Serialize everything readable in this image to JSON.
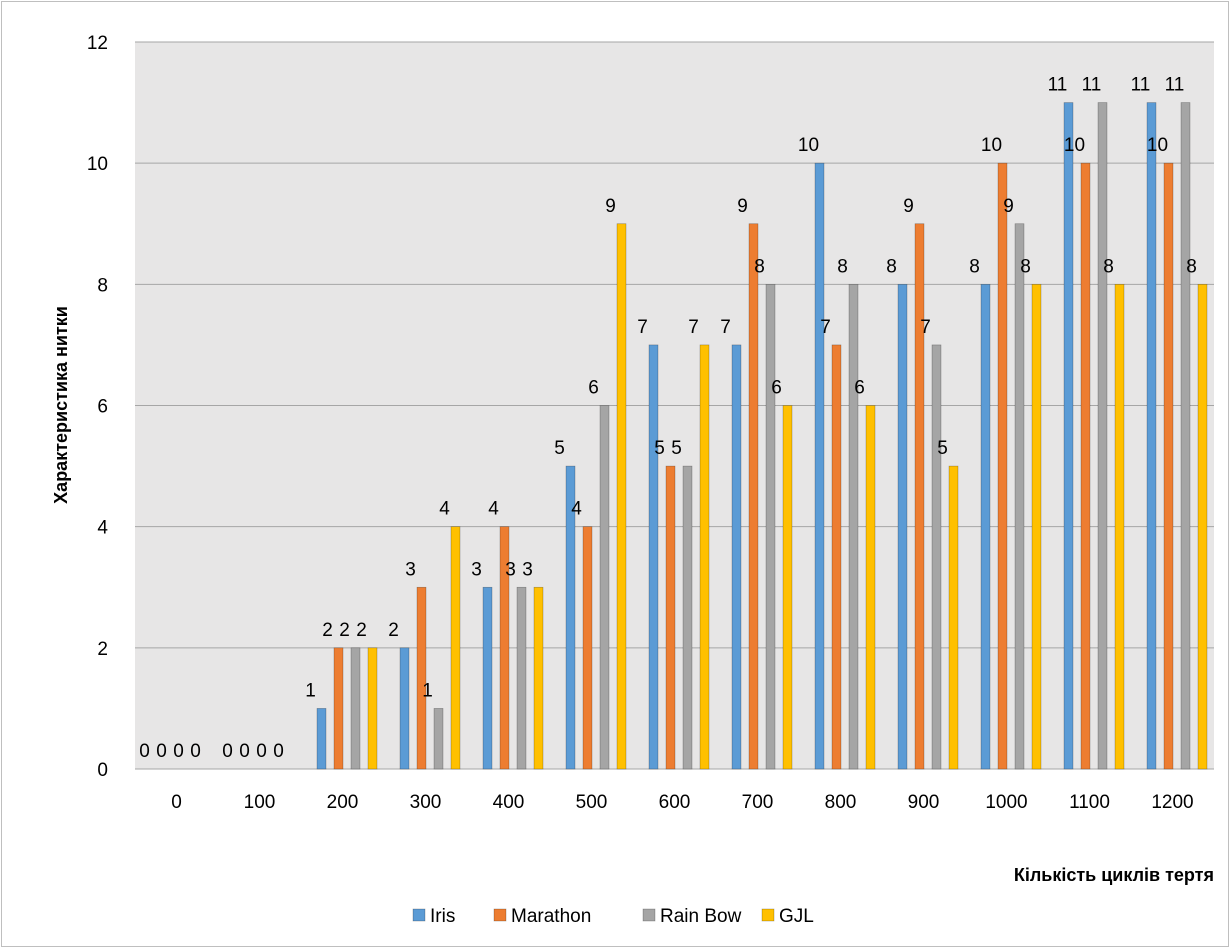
{
  "chart_data": {
    "type": "bar",
    "categories": [
      "0",
      "100",
      "200",
      "300",
      "400",
      "500",
      "600",
      "700",
      "800",
      "900",
      "1000",
      "1100",
      "1200"
    ],
    "series": [
      {
        "name": "Iris",
        "color": "#5B9BD5",
        "values": [
          0,
          0,
          1,
          2,
          3,
          5,
          7,
          7,
          10,
          8,
          8,
          11,
          11
        ]
      },
      {
        "name": "Marathon",
        "color": "#ED7D31",
        "values": [
          0,
          0,
          2,
          3,
          4,
          4,
          5,
          9,
          7,
          9,
          10,
          10,
          10
        ]
      },
      {
        "name": "Rain Bow",
        "color": "#A5A5A5",
        "values": [
          0,
          0,
          2,
          1,
          3,
          6,
          5,
          8,
          8,
          7,
          9,
          11,
          11
        ]
      },
      {
        "name": "GJL",
        "color": "#FFC000",
        "values": [
          0,
          0,
          2,
          4,
          3,
          9,
          7,
          6,
          6,
          5,
          8,
          8,
          8
        ]
      }
    ],
    "title": "",
    "xlabel": "Кількість циклів тертя",
    "ylabel": "Характеристика нитки",
    "ylim": [
      0,
      12
    ],
    "yticks": [
      0,
      2,
      4,
      6,
      8,
      10,
      12
    ],
    "grid": true,
    "plot_background": "#E7E6E6",
    "legend_position": "bottom"
  }
}
